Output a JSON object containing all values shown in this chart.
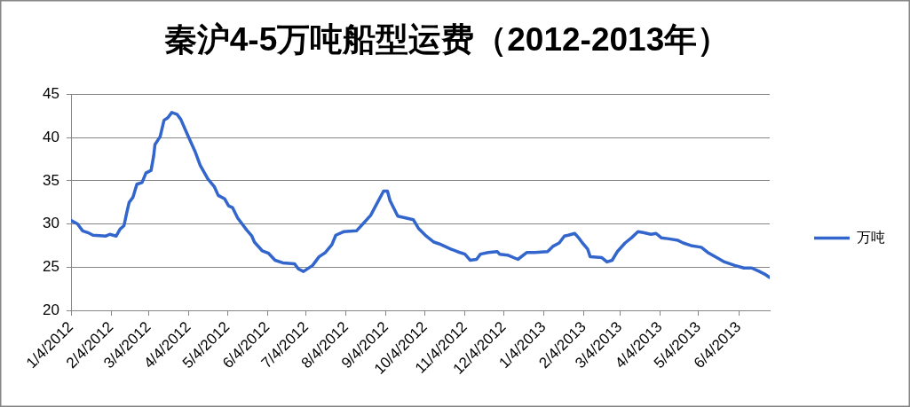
{
  "chart_data": {
    "type": "line",
    "title": "秦沪4-5万吨船型运费（2012-2013年）",
    "x": [
      "2012-01-04",
      "2012-01-09",
      "2012-01-13",
      "2012-01-17",
      "2012-01-21",
      "2012-01-31",
      "2012-02-03",
      "2012-02-08",
      "2012-02-11",
      "2012-02-14",
      "2012-02-16",
      "2012-02-18",
      "2012-02-21",
      "2012-02-24",
      "2012-02-28",
      "2012-03-02",
      "2012-03-06",
      "2012-03-08",
      "2012-03-09",
      "2012-03-13",
      "2012-03-16",
      "2012-03-19",
      "2012-03-22",
      "2012-03-26",
      "2012-03-29",
      "2012-04-03",
      "2012-04-09",
      "2012-04-13",
      "2012-04-19",
      "2012-04-24",
      "2012-04-27",
      "2012-05-02",
      "2012-05-05",
      "2012-05-08",
      "2012-05-12",
      "2012-05-19",
      "2012-05-23",
      "2012-05-25",
      "2012-05-31",
      "2012-06-05",
      "2012-06-10",
      "2012-06-16",
      "2012-06-25",
      "2012-06-28",
      "2012-07-02",
      "2012-07-09",
      "2012-07-14",
      "2012-07-19",
      "2012-07-24",
      "2012-07-27",
      "2012-08-02",
      "2012-08-12",
      "2012-08-17",
      "2012-08-23",
      "2012-08-28",
      "2012-09-02",
      "2012-09-05",
      "2012-09-07",
      "2012-09-13",
      "2012-09-25",
      "2012-09-29",
      "2012-10-05",
      "2012-10-11",
      "2012-10-15",
      "2012-10-21",
      "2012-10-24",
      "2012-10-29",
      "2012-11-04",
      "2012-11-08",
      "2012-11-13",
      "2012-11-16",
      "2012-11-22",
      "2012-11-29",
      "2012-12-01",
      "2012-12-07",
      "2012-12-15",
      "2012-12-22",
      "2012-12-28",
      "2013-01-07",
      "2013-01-11",
      "2013-01-16",
      "2013-01-20",
      "2013-01-23",
      "2013-01-28",
      "2013-01-31",
      "2013-02-03",
      "2013-02-07",
      "2013-02-09",
      "2013-02-18",
      "2013-02-22",
      "2013-02-26",
      "2013-03-02",
      "2013-03-08",
      "2013-03-13",
      "2013-03-18",
      "2013-03-22",
      "2013-03-28",
      "2013-04-01",
      "2013-04-05",
      "2013-04-10",
      "2013-04-18",
      "2013-04-22",
      "2013-04-28",
      "2013-05-06",
      "2013-05-11",
      "2013-05-18",
      "2013-05-24",
      "2013-06-01",
      "2013-06-08",
      "2013-06-14",
      "2013-06-20",
      "2013-06-24",
      "2013-06-28"
    ],
    "series": [
      {
        "name": "万吨",
        "color": "#3366cc",
        "values": [
          30.4,
          30.0,
          29.2,
          29.0,
          28.7,
          28.6,
          28.8,
          28.6,
          29.4,
          29.8,
          31.2,
          32.5,
          33.1,
          34.6,
          34.8,
          35.9,
          36.2,
          37.9,
          39.2,
          40.1,
          42.0,
          42.3,
          42.9,
          42.7,
          42.1,
          40.4,
          38.4,
          36.8,
          35.2,
          34.3,
          33.3,
          32.9,
          32.1,
          31.9,
          30.7,
          29.3,
          28.6,
          27.9,
          26.9,
          26.6,
          25.8,
          25.5,
          25.4,
          24.8,
          24.5,
          25.2,
          26.2,
          26.7,
          27.6,
          28.7,
          29.1,
          29.2,
          30.0,
          31.0,
          32.4,
          33.8,
          33.8,
          32.7,
          30.9,
          30.5,
          29.5,
          28.6,
          27.9,
          27.7,
          27.3,
          27.1,
          26.8,
          26.5,
          25.8,
          25.9,
          26.5,
          26.7,
          26.8,
          26.5,
          26.4,
          25.9,
          26.7,
          26.7,
          26.8,
          27.4,
          27.8,
          28.6,
          28.7,
          28.9,
          28.4,
          27.8,
          27.1,
          26.2,
          26.1,
          25.6,
          25.8,
          26.8,
          27.8,
          28.4,
          29.1,
          29.0,
          28.8,
          28.9,
          28.4,
          28.3,
          28.1,
          27.8,
          27.5,
          27.3,
          26.7,
          26.1,
          25.6,
          25.2,
          24.9,
          24.9,
          24.5,
          24.2,
          23.8
        ]
      }
    ],
    "xlim": [
      "2012-01-04",
      "2013-06-28"
    ],
    "xticks": [
      {
        "value": "2012-01-04",
        "label": "1/4/2012"
      },
      {
        "value": "2012-02-04",
        "label": "2/4/2012"
      },
      {
        "value": "2012-03-04",
        "label": "3/4/2012"
      },
      {
        "value": "2012-04-04",
        "label": "4/4/2012"
      },
      {
        "value": "2012-05-04",
        "label": "5/4/2012"
      },
      {
        "value": "2012-06-04",
        "label": "6/4/2012"
      },
      {
        "value": "2012-07-04",
        "label": "7/4/2012"
      },
      {
        "value": "2012-08-04",
        "label": "8/4/2012"
      },
      {
        "value": "2012-09-04",
        "label": "9/4/2012"
      },
      {
        "value": "2012-10-04",
        "label": "10/4/2012"
      },
      {
        "value": "2012-11-04",
        "label": "11/4/2012"
      },
      {
        "value": "2012-12-04",
        "label": "12/4/2012"
      },
      {
        "value": "2013-01-04",
        "label": "1/4/2013"
      },
      {
        "value": "2013-02-04",
        "label": "2/4/2013"
      },
      {
        "value": "2013-03-04",
        "label": "3/4/2013"
      },
      {
        "value": "2013-04-04",
        "label": "4/4/2013"
      },
      {
        "value": "2013-05-04",
        "label": "5/4/2013"
      },
      {
        "value": "2013-06-04",
        "label": "6/4/2013"
      }
    ],
    "ylim": [
      20,
      45
    ],
    "yticks": [
      20,
      25,
      30,
      35,
      40,
      45
    ],
    "grid": "y",
    "legend": "right",
    "marker": "none"
  }
}
